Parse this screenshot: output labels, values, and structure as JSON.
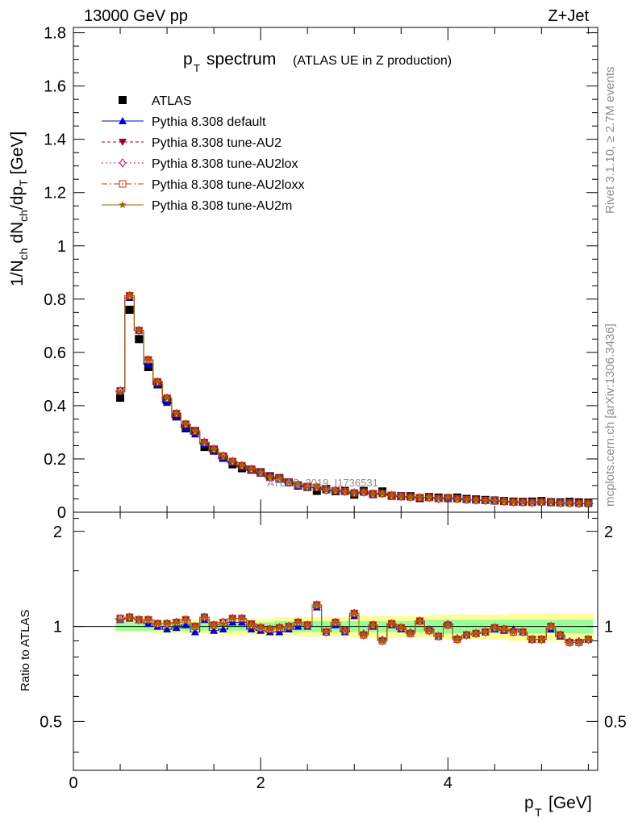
{
  "header": {
    "energy_label": "13000 GeV pp",
    "process_label": "Z+Jet"
  },
  "side_labels": {
    "rivet": "Rivet 3.1.10, ≥ 2.7M events",
    "mcplots": "mcplots.cern.ch [arXiv:1306.3436]"
  },
  "watermark": "ATLAS_2019_I1736531",
  "chart_data": {
    "type": "line",
    "title_main": "p",
    "title_sub": "T",
    "title_word": "spectrum",
    "title_note": "(ATLAS UE in Z production)",
    "xlabel_main": "p",
    "xlabel_sub": "T",
    "xlabel_unit": "[GeV]",
    "ylabel_parts": [
      "1/N",
      "ch",
      " dN",
      "ch",
      "/dp",
      "T",
      " [GeV]"
    ],
    "ratio_ylabel": "Ratio to ATLAS",
    "xlim": [
      0,
      5.6
    ],
    "ylim": [
      0,
      1.82
    ],
    "ratio_ylim": [
      0.35,
      2.3
    ],
    "x_ticks": [
      0,
      2,
      4
    ],
    "y_ticks": [
      0,
      0.2,
      0.4,
      0.6,
      0.8,
      1,
      1.2,
      1.4,
      1.6,
      1.8
    ],
    "y_tick_labels": [
      "0",
      "0.2",
      "0.4",
      "0.6",
      "0.8",
      "1",
      "1.2",
      "1.4",
      "1.6",
      "1.8"
    ],
    "ratio_ticks": [
      0.5,
      1,
      2
    ],
    "ratio_tick_labels": [
      "0.5",
      "1",
      "2"
    ],
    "x": [
      0.5,
      0.6,
      0.7,
      0.8,
      0.9,
      1.0,
      1.1,
      1.2,
      1.3,
      1.4,
      1.5,
      1.6,
      1.7,
      1.8,
      1.9,
      2.0,
      2.1,
      2.2,
      2.3,
      2.4,
      2.5,
      2.6,
      2.7,
      2.8,
      2.9,
      3.0,
      3.1,
      3.2,
      3.3,
      3.4,
      3.5,
      3.6,
      3.7,
      3.8,
      3.9,
      4.0,
      4.1,
      4.2,
      4.3,
      4.4,
      4.5,
      4.6,
      4.7,
      4.8,
      4.9,
      5.0,
      5.1,
      5.2,
      5.3,
      5.4,
      5.5
    ],
    "atlas": {
      "name": "ATLAS",
      "values": [
        0.43,
        0.76,
        0.65,
        0.545,
        0.48,
        0.42,
        0.36,
        0.315,
        0.305,
        0.245,
        0.235,
        0.205,
        0.18,
        0.165,
        0.16,
        0.15,
        0.135,
        0.128,
        0.112,
        0.1,
        0.095,
        0.08,
        0.087,
        0.079,
        0.08,
        0.066,
        0.08,
        0.068,
        0.078,
        0.062,
        0.06,
        0.06,
        0.053,
        0.057,
        0.055,
        0.053,
        0.055,
        0.05,
        0.048,
        0.046,
        0.044,
        0.042,
        0.04,
        0.039,
        0.04,
        0.042,
        0.038,
        0.037,
        0.039,
        0.037,
        0.036
      ]
    },
    "band_inner": {
      "lo": [
        0.97,
        0.97,
        0.97,
        0.97,
        0.97,
        0.97,
        0.97,
        0.97,
        0.97,
        0.97,
        0.97,
        0.97,
        0.97,
        0.97,
        0.97,
        0.97,
        0.97,
        0.96,
        0.96,
        0.96,
        0.96,
        0.96,
        0.96,
        0.96,
        0.96,
        0.96,
        0.96,
        0.96,
        0.96,
        0.96,
        0.96,
        0.96,
        0.96,
        0.95,
        0.95,
        0.95,
        0.95,
        0.95,
        0.95,
        0.95,
        0.95,
        0.95,
        0.95,
        0.95,
        0.95,
        0.95,
        0.95,
        0.95,
        0.95,
        0.95,
        0.95
      ],
      "hi": [
        1.03,
        1.03,
        1.03,
        1.03,
        1.03,
        1.03,
        1.03,
        1.03,
        1.03,
        1.03,
        1.03,
        1.03,
        1.03,
        1.03,
        1.03,
        1.03,
        1.03,
        1.04,
        1.04,
        1.04,
        1.04,
        1.04,
        1.04,
        1.04,
        1.04,
        1.04,
        1.04,
        1.04,
        1.04,
        1.04,
        1.04,
        1.04,
        1.04,
        1.05,
        1.05,
        1.05,
        1.05,
        1.05,
        1.05,
        1.05,
        1.05,
        1.05,
        1.05,
        1.05,
        1.05,
        1.05,
        1.05,
        1.05,
        1.05,
        1.05,
        1.05
      ]
    },
    "band_outer": {
      "lo": [
        0.96,
        0.96,
        0.96,
        0.96,
        0.95,
        0.95,
        0.95,
        0.95,
        0.95,
        0.95,
        0.95,
        0.94,
        0.94,
        0.94,
        0.94,
        0.94,
        0.94,
        0.93,
        0.93,
        0.93,
        0.93,
        0.93,
        0.93,
        0.93,
        0.93,
        0.92,
        0.92,
        0.92,
        0.92,
        0.92,
        0.92,
        0.92,
        0.92,
        0.92,
        0.91,
        0.91,
        0.91,
        0.91,
        0.91,
        0.91,
        0.91,
        0.91,
        0.9,
        0.9,
        0.9,
        0.9,
        0.9,
        0.9,
        0.9,
        0.9,
        0.9
      ],
      "hi": [
        1.04,
        1.04,
        1.04,
        1.04,
        1.05,
        1.05,
        1.05,
        1.05,
        1.05,
        1.05,
        1.05,
        1.06,
        1.06,
        1.06,
        1.06,
        1.06,
        1.06,
        1.07,
        1.07,
        1.07,
        1.07,
        1.07,
        1.07,
        1.07,
        1.07,
        1.08,
        1.08,
        1.08,
        1.08,
        1.08,
        1.08,
        1.08,
        1.08,
        1.08,
        1.09,
        1.09,
        1.09,
        1.09,
        1.09,
        1.09,
        1.09,
        1.09,
        1.1,
        1.1,
        1.1,
        1.1,
        1.1,
        1.1,
        1.1,
        1.1,
        1.1
      ]
    },
    "series": [
      {
        "name": "Pythia 8.308 default",
        "color": "#0000cc",
        "marker": "triangle-up",
        "dash": "",
        "ratio": [
          1.05,
          1.06,
          1.05,
          1.02,
          1.0,
          0.98,
          0.99,
          1.01,
          0.96,
          1.05,
          0.97,
          0.98,
          1.03,
          1.03,
          0.98,
          0.97,
          0.96,
          0.96,
          0.98,
          1.0,
          1.0,
          1.15,
          0.96,
          1.01,
          0.96,
          1.08,
          0.95,
          1.0,
          0.91,
          1.01,
          0.98,
          0.96,
          1.04,
          0.98,
          0.93,
          1.02,
          0.92,
          0.94,
          0.95,
          0.96,
          0.98,
          0.97,
          0.98,
          0.96,
          0.91,
          0.91,
          0.98,
          0.93,
          0.9,
          0.9,
          0.91
        ]
      },
      {
        "name": "Pythia 8.308 tune-AU2",
        "color": "#990033",
        "marker": "triangle-down",
        "dash": "4,3",
        "ratio": [
          1.06,
          1.07,
          1.05,
          1.05,
          1.02,
          1.02,
          1.03,
          1.05,
          1.0,
          1.07,
          1.01,
          1.03,
          1.06,
          1.06,
          1.02,
          0.99,
          0.98,
          0.99,
          1.0,
          1.03,
          1.01,
          1.17,
          0.96,
          1.03,
          0.97,
          1.1,
          0.94,
          1.01,
          0.9,
          1.02,
          0.99,
          0.95,
          1.04,
          0.97,
          0.93,
          1.01,
          0.91,
          0.94,
          0.95,
          0.96,
          0.99,
          0.98,
          0.96,
          0.96,
          0.91,
          0.91,
          1.0,
          0.94,
          0.89,
          0.89,
          0.91
        ]
      },
      {
        "name": "Pythia 8.308 tune-AU2lox",
        "color": "#cc0066",
        "marker": "diamond",
        "dash": "2,3",
        "ratio": [
          1.06,
          1.07,
          1.05,
          1.05,
          1.02,
          1.02,
          1.03,
          1.05,
          1.0,
          1.07,
          1.01,
          1.03,
          1.06,
          1.06,
          1.01,
          0.99,
          0.98,
          0.99,
          1.0,
          1.03,
          1.01,
          1.17,
          0.96,
          1.03,
          0.97,
          1.1,
          0.94,
          1.01,
          0.9,
          1.02,
          0.99,
          0.95,
          1.04,
          0.97,
          0.93,
          1.01,
          0.91,
          0.94,
          0.95,
          0.96,
          0.99,
          0.98,
          0.96,
          0.96,
          0.91,
          0.91,
          1.0,
          0.94,
          0.89,
          0.89,
          0.91
        ]
      },
      {
        "name": "Pythia 8.308 tune-AU2loxx",
        "color": "#cc3300",
        "marker": "square-open",
        "dash": "7,3,2,3",
        "ratio": [
          1.06,
          1.07,
          1.05,
          1.05,
          1.02,
          1.02,
          1.03,
          1.05,
          1.0,
          1.07,
          1.01,
          1.03,
          1.06,
          1.06,
          1.01,
          0.99,
          0.98,
          0.99,
          1.0,
          1.03,
          1.01,
          1.17,
          0.96,
          1.03,
          0.97,
          1.1,
          0.94,
          1.01,
          0.9,
          1.02,
          0.99,
          0.95,
          1.04,
          0.97,
          0.93,
          1.01,
          0.91,
          0.94,
          0.95,
          0.96,
          0.99,
          0.98,
          0.96,
          0.96,
          0.91,
          0.91,
          1.0,
          0.94,
          0.89,
          0.89,
          0.91
        ]
      },
      {
        "name": "Pythia 8.308 tune-AU2m",
        "color": "#996600",
        "marker": "star",
        "dash": "",
        "ratio": [
          1.05,
          1.07,
          1.05,
          1.05,
          1.02,
          1.02,
          1.03,
          1.05,
          1.0,
          1.07,
          1.01,
          1.02,
          1.06,
          1.06,
          1.01,
          0.99,
          0.98,
          0.99,
          1.0,
          1.03,
          1.01,
          1.17,
          0.96,
          1.03,
          0.97,
          1.1,
          0.94,
          1.01,
          0.9,
          1.02,
          0.99,
          0.95,
          1.04,
          0.97,
          0.93,
          1.01,
          0.91,
          0.94,
          0.95,
          0.96,
          0.99,
          0.98,
          0.96,
          0.96,
          0.91,
          0.91,
          1.0,
          0.94,
          0.89,
          0.89,
          0.91
        ]
      }
    ],
    "legend_placement": "top-left",
    "colors": {
      "band_inner": "#99ff99",
      "band_outer": "#ffff99",
      "atlas": "#000000"
    }
  }
}
